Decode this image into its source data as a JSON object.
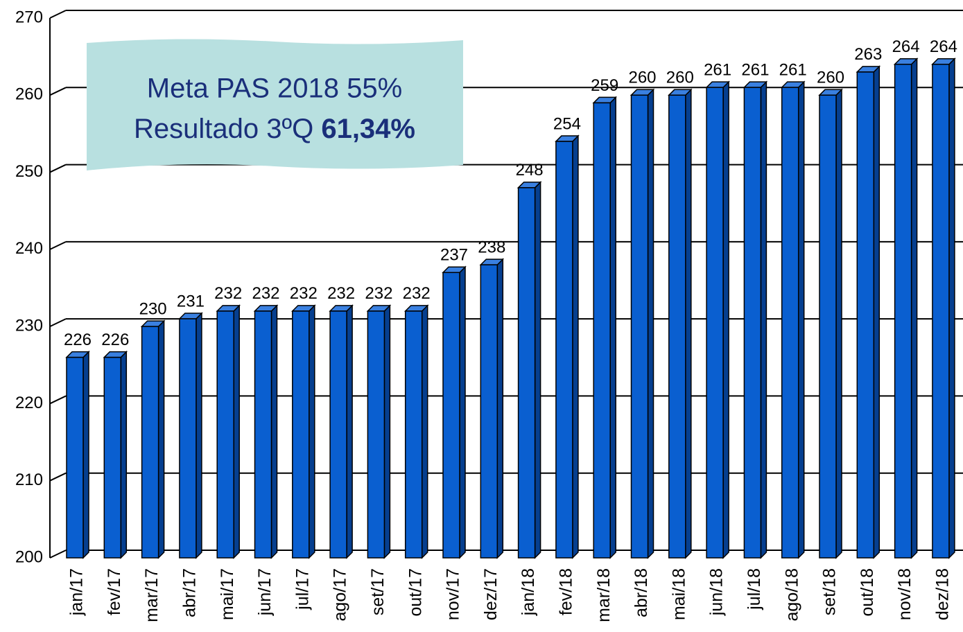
{
  "chart_data": {
    "type": "bar",
    "annotations": [
      "Meta PAS 2018 55%",
      "Resultado 3ºQ",
      "61,34%"
    ],
    "categories": [
      "jan/17",
      "fev/17",
      "mar/17",
      "abr/17",
      "mai/17",
      "jun/17",
      "jul/17",
      "ago/17",
      "set/17",
      "out/17",
      "nov/17",
      "dez/17",
      "jan/18",
      "fev/18",
      "mar/18",
      "abr/18",
      "mai/18",
      "jun/18",
      "jul/18",
      "ago/18",
      "set/18",
      "out/18",
      "nov/18",
      "dez/18"
    ],
    "values": [
      226,
      226,
      230,
      231,
      232,
      232,
      232,
      232,
      232,
      232,
      237,
      238,
      248,
      254,
      259,
      260,
      260,
      261,
      261,
      261,
      260,
      263,
      264,
      264
    ],
    "color": "#0a5fd0",
    "ylim": [
      200,
      270
    ],
    "yticks": [
      200,
      210,
      220,
      230,
      240,
      250,
      260,
      270
    ],
    "grid": true
  }
}
